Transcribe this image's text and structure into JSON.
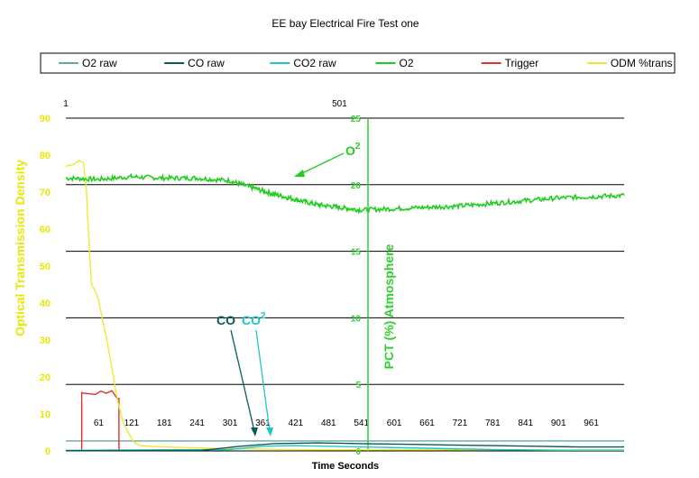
{
  "chart_data": {
    "type": "line",
    "title": "EE bay Electrical Fire Test one",
    "xlabel": "Time Seconds",
    "ylabel": "Optical Transmission Density",
    "y2label": "PCT  (%)  Atmosphere",
    "xlim": [
      1,
      1021
    ],
    "ylim": [
      0,
      90
    ],
    "y2lim": [
      0,
      25
    ],
    "x_ticks": [
      "61",
      "121",
      "181",
      "241",
      "301",
      "361",
      "421",
      "481",
      "541",
      "601",
      "661",
      "721",
      "781",
      "841",
      "901",
      "961"
    ],
    "x_tick_values": [
      61,
      121,
      181,
      241,
      301,
      361,
      421,
      481,
      541,
      601,
      661,
      721,
      781,
      841,
      901,
      961
    ],
    "top_ticks": [
      "1",
      "501"
    ],
    "top_tick_values": [
      1,
      501
    ],
    "y_ticks": [
      "0",
      "10",
      "20",
      "30",
      "40",
      "50",
      "60",
      "70",
      "80",
      "90"
    ],
    "y_tick_values": [
      0,
      10,
      20,
      30,
      40,
      50,
      60,
      70,
      80,
      90
    ],
    "y2_ticks": [
      "0",
      "5",
      "10",
      "15",
      "20",
      "25"
    ],
    "y2_tick_values": [
      0,
      5,
      10,
      15,
      20,
      25
    ],
    "grid": "horizontal",
    "legend_position": "top",
    "series": [
      {
        "name": "O2 raw",
        "color": "#6aa6a0",
        "axis": "y2",
        "x": [
          1,
          1021
        ],
        "y": [
          0.75,
          0.75
        ]
      },
      {
        "name": "CO raw",
        "color": "#0b5a5a",
        "axis": "y2",
        "x": [
          1,
          250,
          320,
          380,
          460,
          540,
          620,
          700,
          780,
          860,
          940,
          1021
        ],
        "y": [
          0.02,
          0.05,
          0.35,
          0.55,
          0.6,
          0.55,
          0.5,
          0.45,
          0.4,
          0.35,
          0.3,
          0.3
        ]
      },
      {
        "name": "CO2 raw",
        "color": "#1fc6c6",
        "axis": "y2",
        "x": [
          1,
          300,
          360,
          420,
          540,
          660,
          780,
          900,
          1021
        ],
        "y": [
          0.05,
          0.1,
          0.35,
          0.4,
          0.3,
          0.2,
          0.1,
          0.05,
          0.05
        ]
      },
      {
        "name": "O2",
        "color": "#22cc22",
        "axis": "y2",
        "x": [
          1,
          60,
          120,
          180,
          240,
          300,
          340,
          380,
          420,
          460,
          500,
          540,
          600,
          660,
          720,
          780,
          840,
          900,
          960,
          1021
        ],
        "y": [
          20.5,
          20.4,
          20.6,
          20.5,
          20.5,
          20.3,
          19.8,
          19.3,
          18.9,
          18.5,
          18.3,
          18.1,
          18.2,
          18.3,
          18.4,
          18.6,
          18.8,
          19.0,
          19.1,
          19.2
        ]
      },
      {
        "name": "Trigger",
        "color": "#e03030",
        "axis": "y",
        "x": [
          30,
          30,
          33,
          55,
          65,
          75,
          85,
          95,
          98,
          98
        ],
        "y": [
          0,
          15.8,
          15.6,
          15.3,
          16.2,
          15.6,
          16.3,
          14.2,
          14.2,
          0
        ]
      },
      {
        "name": "ODM %trans",
        "color": "#f0e830",
        "axis": "y",
        "x": [
          1,
          15,
          25,
          33,
          38,
          42,
          45,
          48,
          52,
          58,
          62,
          66,
          70,
          76,
          82,
          88,
          95,
          105,
          115,
          125,
          135,
          160,
          200,
          250,
          300,
          350,
          400,
          500,
          600,
          700,
          800,
          900,
          1021
        ],
        "y": [
          77,
          77.5,
          78.5,
          78,
          72,
          60,
          52,
          45,
          44,
          42,
          40,
          37,
          34,
          30,
          25,
          20,
          14,
          8,
          5,
          2.5,
          1.5,
          1.2,
          1,
          0.8,
          0.6,
          0.5,
          0.4,
          0.3,
          0.3,
          0.3,
          0.3,
          0.3,
          0.3
        ]
      }
    ],
    "annotations": [
      {
        "text": "O",
        "sup": "2",
        "color": "#22cc22"
      },
      {
        "text": "CO",
        "color": "#0b5a5a"
      },
      {
        "text": "CO",
        "sup": "2",
        "color": "#1fc6c6"
      }
    ]
  }
}
